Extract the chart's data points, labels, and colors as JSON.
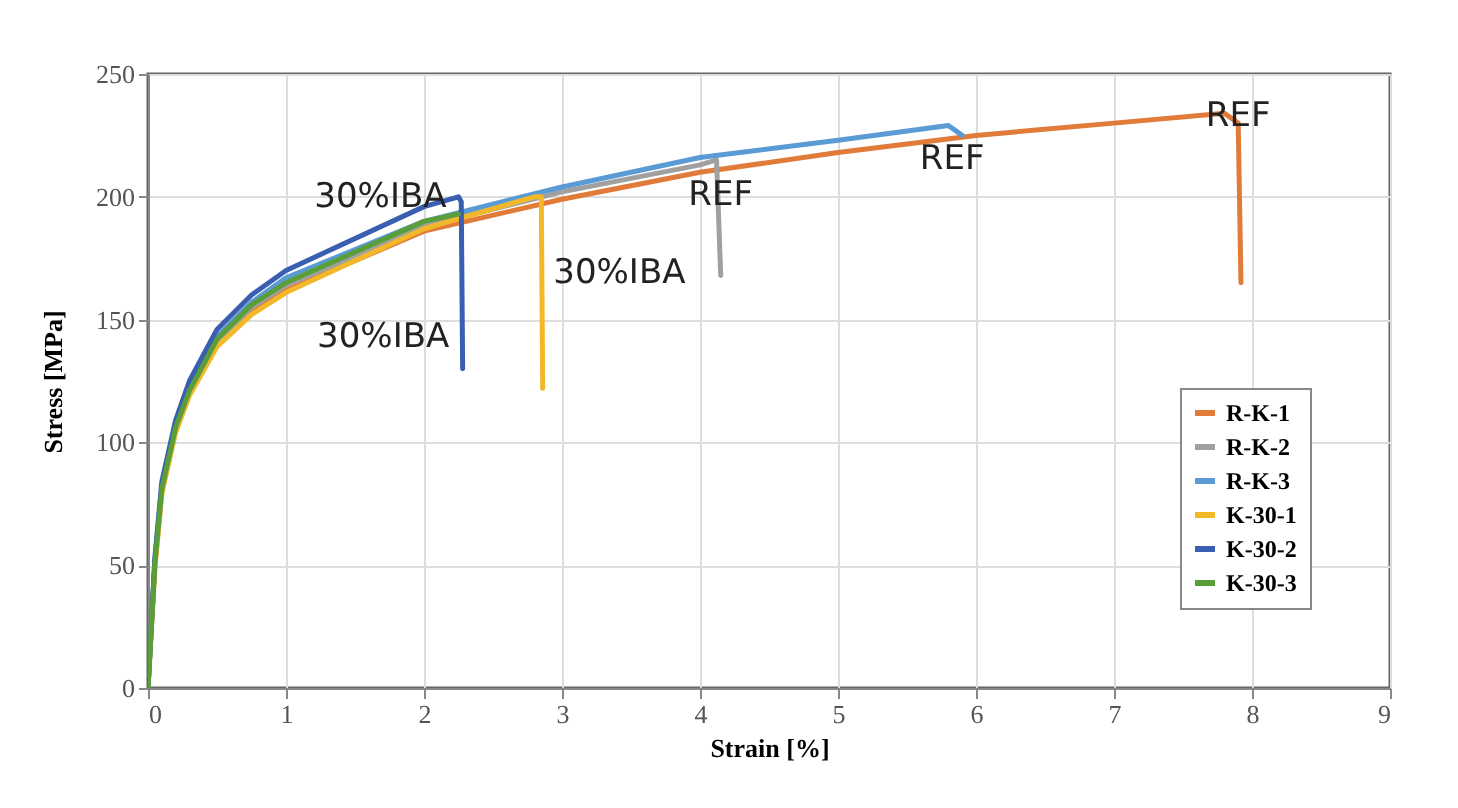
{
  "chart_data": {
    "type": "line",
    "xlabel": "Strain [%]",
    "ylabel": "Stress [MPa]",
    "xlim": [
      0,
      9
    ],
    "xticks": [
      0,
      1,
      2,
      3,
      4,
      5,
      6,
      7,
      8,
      9
    ],
    "ylim": [
      0,
      250
    ],
    "yticks": [
      0,
      50,
      100,
      150,
      200,
      250
    ],
    "grid": true,
    "legend": "bottom right",
    "line_style": "solid",
    "marker": "none",
    "series": [
      {
        "name": "R-K-1",
        "color": "#e07b39",
        "x": [
          0,
          0.05,
          0.1,
          0.2,
          0.3,
          0.5,
          0.75,
          1,
          2,
          3,
          4,
          5,
          6,
          7,
          7.8,
          7.9,
          7.92
        ],
        "values": [
          0,
          50,
          80,
          105,
          120,
          140,
          153,
          162,
          186,
          199,
          210,
          218,
          225,
          230,
          234,
          230,
          165
        ]
      },
      {
        "name": "R-K-2",
        "color": "#a0a0a0",
        "x": [
          0,
          0.05,
          0.1,
          0.2,
          0.3,
          0.5,
          0.75,
          1,
          2,
          3,
          4,
          4.12,
          4.15
        ],
        "values": [
          0,
          51,
          81,
          106,
          121,
          141,
          155,
          164,
          188,
          202,
          213,
          215,
          168
        ]
      },
      {
        "name": "R-K-3",
        "color": "#5b9bd5",
        "x": [
          0,
          0.05,
          0.1,
          0.2,
          0.3,
          0.5,
          0.75,
          1,
          2,
          3,
          4,
          5,
          5.8,
          5.9
        ],
        "values": [
          0,
          52,
          82,
          107,
          122,
          143,
          157,
          167,
          190,
          204,
          216,
          223,
          229,
          225
        ]
      },
      {
        "name": "K-30-1",
        "color": "#f2b82a",
        "x": [
          0,
          0.05,
          0.1,
          0.2,
          0.3,
          0.5,
          0.75,
          1,
          2,
          2.8,
          2.85,
          2.86
        ],
        "values": [
          0,
          49,
          79,
          104,
          119,
          139,
          152,
          161,
          187,
          200,
          200,
          122
        ]
      },
      {
        "name": "K-30-2",
        "color": "#3a5fb0",
        "x": [
          0,
          0.05,
          0.1,
          0.2,
          0.3,
          0.5,
          0.75,
          1,
          2,
          2.25,
          2.27,
          2.28
        ],
        "values": [
          0,
          53,
          84,
          109,
          125,
          146,
          160,
          170,
          196,
          200,
          198,
          130
        ]
      },
      {
        "name": "K-30-3",
        "color": "#5a9e3a",
        "x": [
          0,
          0.05,
          0.1,
          0.2,
          0.3,
          0.5,
          0.75,
          1,
          2,
          2.25
        ],
        "values": [
          0,
          51,
          81,
          106,
          121,
          142,
          156,
          165,
          190,
          193
        ]
      }
    ],
    "annotations": [
      {
        "text": "30%IBA",
        "x": 2.25,
        "y": 200
      },
      {
        "text": "30%IBA",
        "x": 2.85,
        "y": 169
      },
      {
        "text": "30%IBA",
        "x": 2.27,
        "y": 143
      },
      {
        "text": "REF",
        "x": 4.15,
        "y": 199
      },
      {
        "text": "REF",
        "x": 5.9,
        "y": 225
      },
      {
        "text": "REF",
        "x": 7.9,
        "y": 223
      }
    ]
  }
}
